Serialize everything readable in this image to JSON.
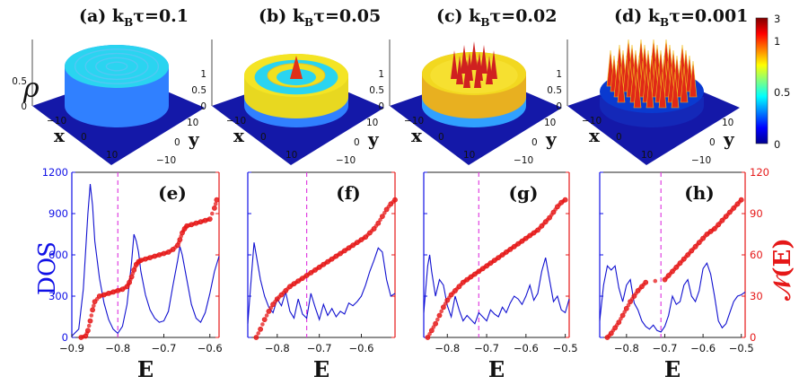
{
  "colorbar": {
    "ticks": [
      "3",
      "1",
      "0.5",
      "0"
    ],
    "colors": [
      "#00008f",
      "#0000ff",
      "#0080ff",
      "#00ffff",
      "#80ff80",
      "#ffff00",
      "#ff8000",
      "#ff0000",
      "#800000"
    ]
  },
  "labels": {
    "rho": "ρ",
    "x": "x",
    "y": "y",
    "E": "E",
    "dos": "DOS",
    "ncal": "𝒩(E)"
  },
  "chart_data": [
    {
      "type": "surface3d",
      "panel": "(a)",
      "title_prefix": "(a) ",
      "title_k": "k",
      "title_sub": "B",
      "title_eq": "τ=0.1",
      "parameter": 0.1,
      "zticks": [
        "0.5",
        "0"
      ],
      "zlim": [
        0,
        0.5
      ],
      "xticks": [
        "−10",
        "0",
        "10"
      ],
      "yticks": [
        "10",
        "0",
        "−10"
      ],
      "pattern": "flat disk with faint concentric rings",
      "colors": {
        "top": "#2ad4f0",
        "ring": "#52c8f4",
        "side": "#3080ff",
        "base": "#1418a8"
      }
    },
    {
      "type": "surface3d",
      "panel": "(b)",
      "title_prefix": "(b) ",
      "title_k": "k",
      "title_sub": "B",
      "title_eq": "τ=0.05",
      "parameter": 0.05,
      "zticks": [
        "1",
        "0.5",
        "0"
      ],
      "zlim": [
        0,
        1
      ],
      "xticks": [
        "−10",
        "0",
        "10"
      ],
      "yticks": [
        "10",
        "0",
        "−10"
      ],
      "pattern": "concentric rings with central peak",
      "colors": {
        "top": "#2ad4f0",
        "ring": "#f0e020",
        "side": "#3080ff",
        "base": "#1418a8"
      }
    },
    {
      "type": "surface3d",
      "panel": "(c)",
      "title_prefix": "(c) ",
      "title_k": "k",
      "title_sub": "B",
      "title_eq": "τ=0.02",
      "parameter": 0.02,
      "zticks": [
        "1",
        "0.5",
        "0"
      ],
      "zlim": [
        0,
        1
      ],
      "xticks": [
        "−10",
        "0",
        "10"
      ],
      "yticks": [
        "10",
        "0",
        "−10"
      ],
      "pattern": "outer ring with central cluster of peaks",
      "colors": {
        "top": "#f2dc20",
        "ring": "#f0a020",
        "side": "#30a0ff",
        "base": "#1418a8"
      }
    },
    {
      "type": "surface3d",
      "panel": "(d)",
      "title_prefix": "(d) ",
      "title_k": "k",
      "title_sub": "B",
      "title_eq": "τ=0.001",
      "parameter": 0.001,
      "zticks": [
        "1",
        "0.5",
        "0"
      ],
      "zlim": [
        0,
        1
      ],
      "xticks": [
        "−10",
        "0",
        "10"
      ],
      "yticks": [
        "10",
        "0",
        "−10"
      ],
      "pattern": "lattice of sharp peaks",
      "colors": {
        "top": "#0a3ad0",
        "ring": "#e02020",
        "side": "#1428b8",
        "base": "#1418a8"
      }
    },
    {
      "type": "line",
      "panel": "(e)",
      "xlim": [
        -0.9,
        -0.58
      ],
      "xticks": [
        -0.9,
        -0.8,
        -0.7,
        -0.6
      ],
      "xticklabels": [
        "−0.9",
        "−0.8",
        "−0.7",
        "−0.6"
      ],
      "dashed_x": -0.8,
      "left_axis": {
        "label": "DOS",
        "ylim": [
          0,
          1200
        ],
        "ticks": [
          0,
          300,
          600,
          900,
          1200
        ],
        "ticklabels": [
          "0",
          "300",
          "600",
          "900",
          "1200"
        ]
      },
      "right_axis": {
        "label": "𝒩(E)",
        "ylim": [
          0,
          120
        ],
        "ticks": [
          0,
          30,
          60,
          90,
          120
        ],
        "ticklabels": []
      },
      "series": [
        {
          "name": "DOS",
          "axis": "left",
          "style": "line",
          "color": "#1010d0",
          "x": [
            -0.9,
            -0.885,
            -0.875,
            -0.865,
            -0.86,
            -0.855,
            -0.85,
            -0.84,
            -0.83,
            -0.82,
            -0.81,
            -0.8,
            -0.79,
            -0.78,
            -0.77,
            -0.765,
            -0.76,
            -0.755,
            -0.75,
            -0.74,
            -0.73,
            -0.72,
            -0.71,
            -0.7,
            -0.69,
            -0.68,
            -0.67,
            -0.665,
            -0.66,
            -0.65,
            -0.64,
            -0.63,
            -0.62,
            -0.61,
            -0.6,
            -0.59,
            -0.58
          ],
          "y": [
            10,
            60,
            350,
            900,
            1115,
            960,
            700,
            430,
            250,
            130,
            60,
            30,
            80,
            240,
            550,
            750,
            700,
            620,
            480,
            310,
            200,
            140,
            110,
            120,
            190,
            380,
            560,
            660,
            600,
            420,
            240,
            140,
            110,
            180,
            320,
            480,
            590
          ]
        },
        {
          "name": "𝒩(E)",
          "axis": "right",
          "style": "markers",
          "color": "#e51818",
          "x": [
            -0.88,
            -0.87,
            -0.865,
            -0.86,
            -0.855,
            -0.85,
            -0.84,
            -0.83,
            -0.82,
            -0.81,
            -0.8,
            -0.79,
            -0.78,
            -0.775,
            -0.77,
            -0.765,
            -0.76,
            -0.755,
            -0.75,
            -0.74,
            -0.73,
            -0.72,
            -0.71,
            -0.7,
            -0.69,
            -0.68,
            -0.67,
            -0.665,
            -0.66,
            -0.655,
            -0.65,
            -0.64,
            -0.63,
            -0.62,
            -0.61,
            -0.6,
            -0.59,
            -0.585
          ],
          "y": [
            0,
            1,
            5,
            12,
            20,
            26,
            30,
            31,
            32,
            33,
            34,
            35,
            37,
            40,
            44,
            49,
            53,
            55,
            56,
            57,
            58,
            59,
            60,
            61,
            62,
            64,
            67,
            71,
            76,
            79,
            81,
            82,
            83,
            84,
            85,
            86,
            94,
            100
          ]
        }
      ]
    },
    {
      "type": "line",
      "panel": "(f)",
      "xlim": [
        -0.87,
        -0.52
      ],
      "xticks": [
        -0.8,
        -0.7,
        -0.6
      ],
      "xticklabels": [
        "−0.8",
        "−0.7",
        "−0.6"
      ],
      "dashed_x": -0.73,
      "left_axis": {
        "label": "DOS",
        "ylim": [
          0,
          1200
        ],
        "ticks": [
          0,
          300,
          600,
          900,
          1200
        ],
        "ticklabels": []
      },
      "right_axis": {
        "label": "𝒩(E)",
        "ylim": [
          0,
          120
        ],
        "ticks": [
          0,
          30,
          60,
          90,
          120
        ],
        "ticklabels": []
      },
      "series": [
        {
          "name": "DOS",
          "axis": "left",
          "style": "line",
          "color": "#1010d0",
          "x": [
            -0.87,
            -0.86,
            -0.855,
            -0.85,
            -0.84,
            -0.83,
            -0.82,
            -0.81,
            -0.8,
            -0.79,
            -0.78,
            -0.77,
            -0.76,
            -0.75,
            -0.74,
            -0.73,
            -0.72,
            -0.71,
            -0.7,
            -0.69,
            -0.68,
            -0.67,
            -0.66,
            -0.65,
            -0.64,
            -0.63,
            -0.62,
            -0.61,
            -0.6,
            -0.59,
            -0.58,
            -0.57,
            -0.56,
            -0.55,
            -0.54,
            -0.53,
            -0.52
          ],
          "y": [
            100,
            500,
            690,
            600,
            420,
            300,
            220,
            180,
            280,
            230,
            330,
            190,
            140,
            280,
            170,
            140,
            320,
            220,
            130,
            240,
            160,
            210,
            150,
            190,
            170,
            250,
            230,
            260,
            300,
            380,
            480,
            560,
            650,
            620,
            420,
            300,
            320
          ]
        },
        {
          "name": "𝒩(E)",
          "axis": "right",
          "style": "markers",
          "color": "#e51818",
          "x": [
            -0.85,
            -0.84,
            -0.83,
            -0.82,
            -0.81,
            -0.8,
            -0.79,
            -0.78,
            -0.77,
            -0.76,
            -0.75,
            -0.74,
            -0.73,
            -0.72,
            -0.71,
            -0.7,
            -0.69,
            -0.68,
            -0.67,
            -0.66,
            -0.65,
            -0.64,
            -0.63,
            -0.62,
            -0.61,
            -0.6,
            -0.59,
            -0.58,
            -0.57,
            -0.56,
            -0.55,
            -0.54,
            -0.53,
            -0.52
          ],
          "y": [
            0,
            6,
            13,
            19,
            24,
            28,
            31,
            34,
            37,
            39,
            41,
            43,
            45,
            47,
            49,
            51,
            53,
            55,
            57,
            59,
            61,
            63,
            65,
            67,
            69,
            71,
            73,
            76,
            79,
            83,
            88,
            93,
            97,
            100
          ]
        }
      ]
    },
    {
      "type": "line",
      "panel": "(g)",
      "xlim": [
        -0.86,
        -0.49
      ],
      "xticks": [
        -0.8,
        -0.7,
        -0.6,
        -0.5
      ],
      "xticklabels": [
        "−0.8",
        "−0.7",
        "−0.6",
        "−0.5"
      ],
      "dashed_x": -0.72,
      "left_axis": {
        "label": "DOS",
        "ylim": [
          0,
          1200
        ],
        "ticks": [
          0,
          300,
          600,
          900,
          1200
        ],
        "ticklabels": []
      },
      "right_axis": {
        "label": "𝒩(E)",
        "ylim": [
          0,
          120
        ],
        "ticks": [
          0,
          30,
          60,
          90,
          120
        ],
        "ticklabels": []
      },
      "series": [
        {
          "name": "DOS",
          "axis": "left",
          "style": "line",
          "color": "#1010d0",
          "x": [
            -0.86,
            -0.85,
            -0.845,
            -0.84,
            -0.83,
            -0.82,
            -0.81,
            -0.8,
            -0.79,
            -0.78,
            -0.77,
            -0.76,
            -0.75,
            -0.74,
            -0.73,
            -0.72,
            -0.71,
            -0.7,
            -0.69,
            -0.68,
            -0.67,
            -0.66,
            -0.65,
            -0.64,
            -0.63,
            -0.62,
            -0.61,
            -0.6,
            -0.59,
            -0.58,
            -0.57,
            -0.56,
            -0.55,
            -0.54,
            -0.53,
            -0.52,
            -0.51,
            -0.5,
            -0.49
          ],
          "y": [
            180,
            520,
            600,
            480,
            300,
            420,
            380,
            230,
            150,
            300,
            200,
            120,
            160,
            130,
            100,
            180,
            150,
            120,
            200,
            170,
            150,
            220,
            180,
            250,
            300,
            280,
            240,
            300,
            380,
            270,
            320,
            480,
            580,
            420,
            260,
            300,
            200,
            180,
            280
          ]
        },
        {
          "name": "𝒩(E)",
          "axis": "right",
          "style": "markers",
          "color": "#e51818",
          "x": [
            -0.85,
            -0.84,
            -0.83,
            -0.82,
            -0.81,
            -0.8,
            -0.79,
            -0.78,
            -0.77,
            -0.76,
            -0.75,
            -0.74,
            -0.73,
            -0.72,
            -0.71,
            -0.7,
            -0.69,
            -0.68,
            -0.67,
            -0.66,
            -0.65,
            -0.64,
            -0.63,
            -0.62,
            -0.61,
            -0.6,
            -0.59,
            -0.58,
            -0.57,
            -0.56,
            -0.55,
            -0.54,
            -0.53,
            -0.52,
            -0.51,
            -0.5
          ],
          "y": [
            0,
            5,
            10,
            16,
            22,
            27,
            31,
            34,
            37,
            40,
            42,
            44,
            46,
            48,
            50,
            52,
            54,
            56,
            58,
            60,
            62,
            64,
            66,
            68,
            70,
            72,
            74,
            76,
            78,
            81,
            84,
            87,
            91,
            95,
            98,
            100
          ]
        }
      ]
    },
    {
      "type": "line",
      "panel": "(h)",
      "xlim": [
        -0.87,
        -0.49
      ],
      "xticks": [
        -0.8,
        -0.7,
        -0.6,
        -0.5
      ],
      "xticklabels": [
        "−0.8",
        "−0.7",
        "−0.6",
        "−0.5"
      ],
      "dashed_x": -0.71,
      "left_axis": {
        "label": "DOS",
        "ylim": [
          0,
          1200
        ],
        "ticks": [
          0,
          300,
          600,
          900,
          1200
        ],
        "ticklabels": []
      },
      "right_axis": {
        "label": "𝒩(E)",
        "ylim": [
          0,
          120
        ],
        "ticks": [
          0,
          30,
          60,
          90,
          120
        ],
        "ticklabels": [
          "0",
          "30",
          "60",
          "90",
          "120"
        ]
      },
      "series": [
        {
          "name": "DOS",
          "axis": "left",
          "style": "line",
          "color": "#1010d0",
          "x": [
            -0.87,
            -0.86,
            -0.85,
            -0.84,
            -0.83,
            -0.82,
            -0.81,
            -0.8,
            -0.79,
            -0.78,
            -0.77,
            -0.76,
            -0.75,
            -0.74,
            -0.73,
            -0.72,
            -0.71,
            -0.7,
            -0.69,
            -0.68,
            -0.67,
            -0.66,
            -0.65,
            -0.64,
            -0.63,
            -0.62,
            -0.61,
            -0.6,
            -0.59,
            -0.58,
            -0.57,
            -0.56,
            -0.55,
            -0.54,
            -0.53,
            -0.52,
            -0.51,
            -0.5,
            -0.49
          ],
          "y": [
            120,
            380,
            520,
            490,
            520,
            360,
            260,
            380,
            420,
            250,
            200,
            120,
            80,
            60,
            90,
            50,
            40,
            80,
            160,
            300,
            240,
            260,
            380,
            420,
            300,
            260,
            340,
            500,
            540,
            460,
            300,
            120,
            70,
            100,
            180,
            260,
            300,
            310,
            330
          ]
        },
        {
          "name": "𝒩(E)",
          "axis": "right",
          "style": "markers",
          "color": "#e51818",
          "x": [
            -0.85,
            -0.84,
            -0.83,
            -0.82,
            -0.81,
            -0.8,
            -0.79,
            -0.78,
            -0.77,
            -0.76,
            -0.75,
            -0.7,
            -0.69,
            -0.68,
            -0.67,
            -0.66,
            -0.65,
            -0.64,
            -0.63,
            -0.62,
            -0.61,
            -0.6,
            -0.59,
            -0.58,
            -0.57,
            -0.56,
            -0.55,
            -0.54,
            -0.53,
            -0.52,
            -0.51,
            -0.5
          ],
          "y": [
            0,
            3,
            7,
            11,
            16,
            21,
            26,
            30,
            34,
            37,
            40,
            42,
            45,
            48,
            51,
            54,
            57,
            60,
            63,
            66,
            69,
            72,
            75,
            77,
            79,
            82,
            85,
            88,
            91,
            94,
            97,
            100
          ]
        }
      ]
    }
  ]
}
